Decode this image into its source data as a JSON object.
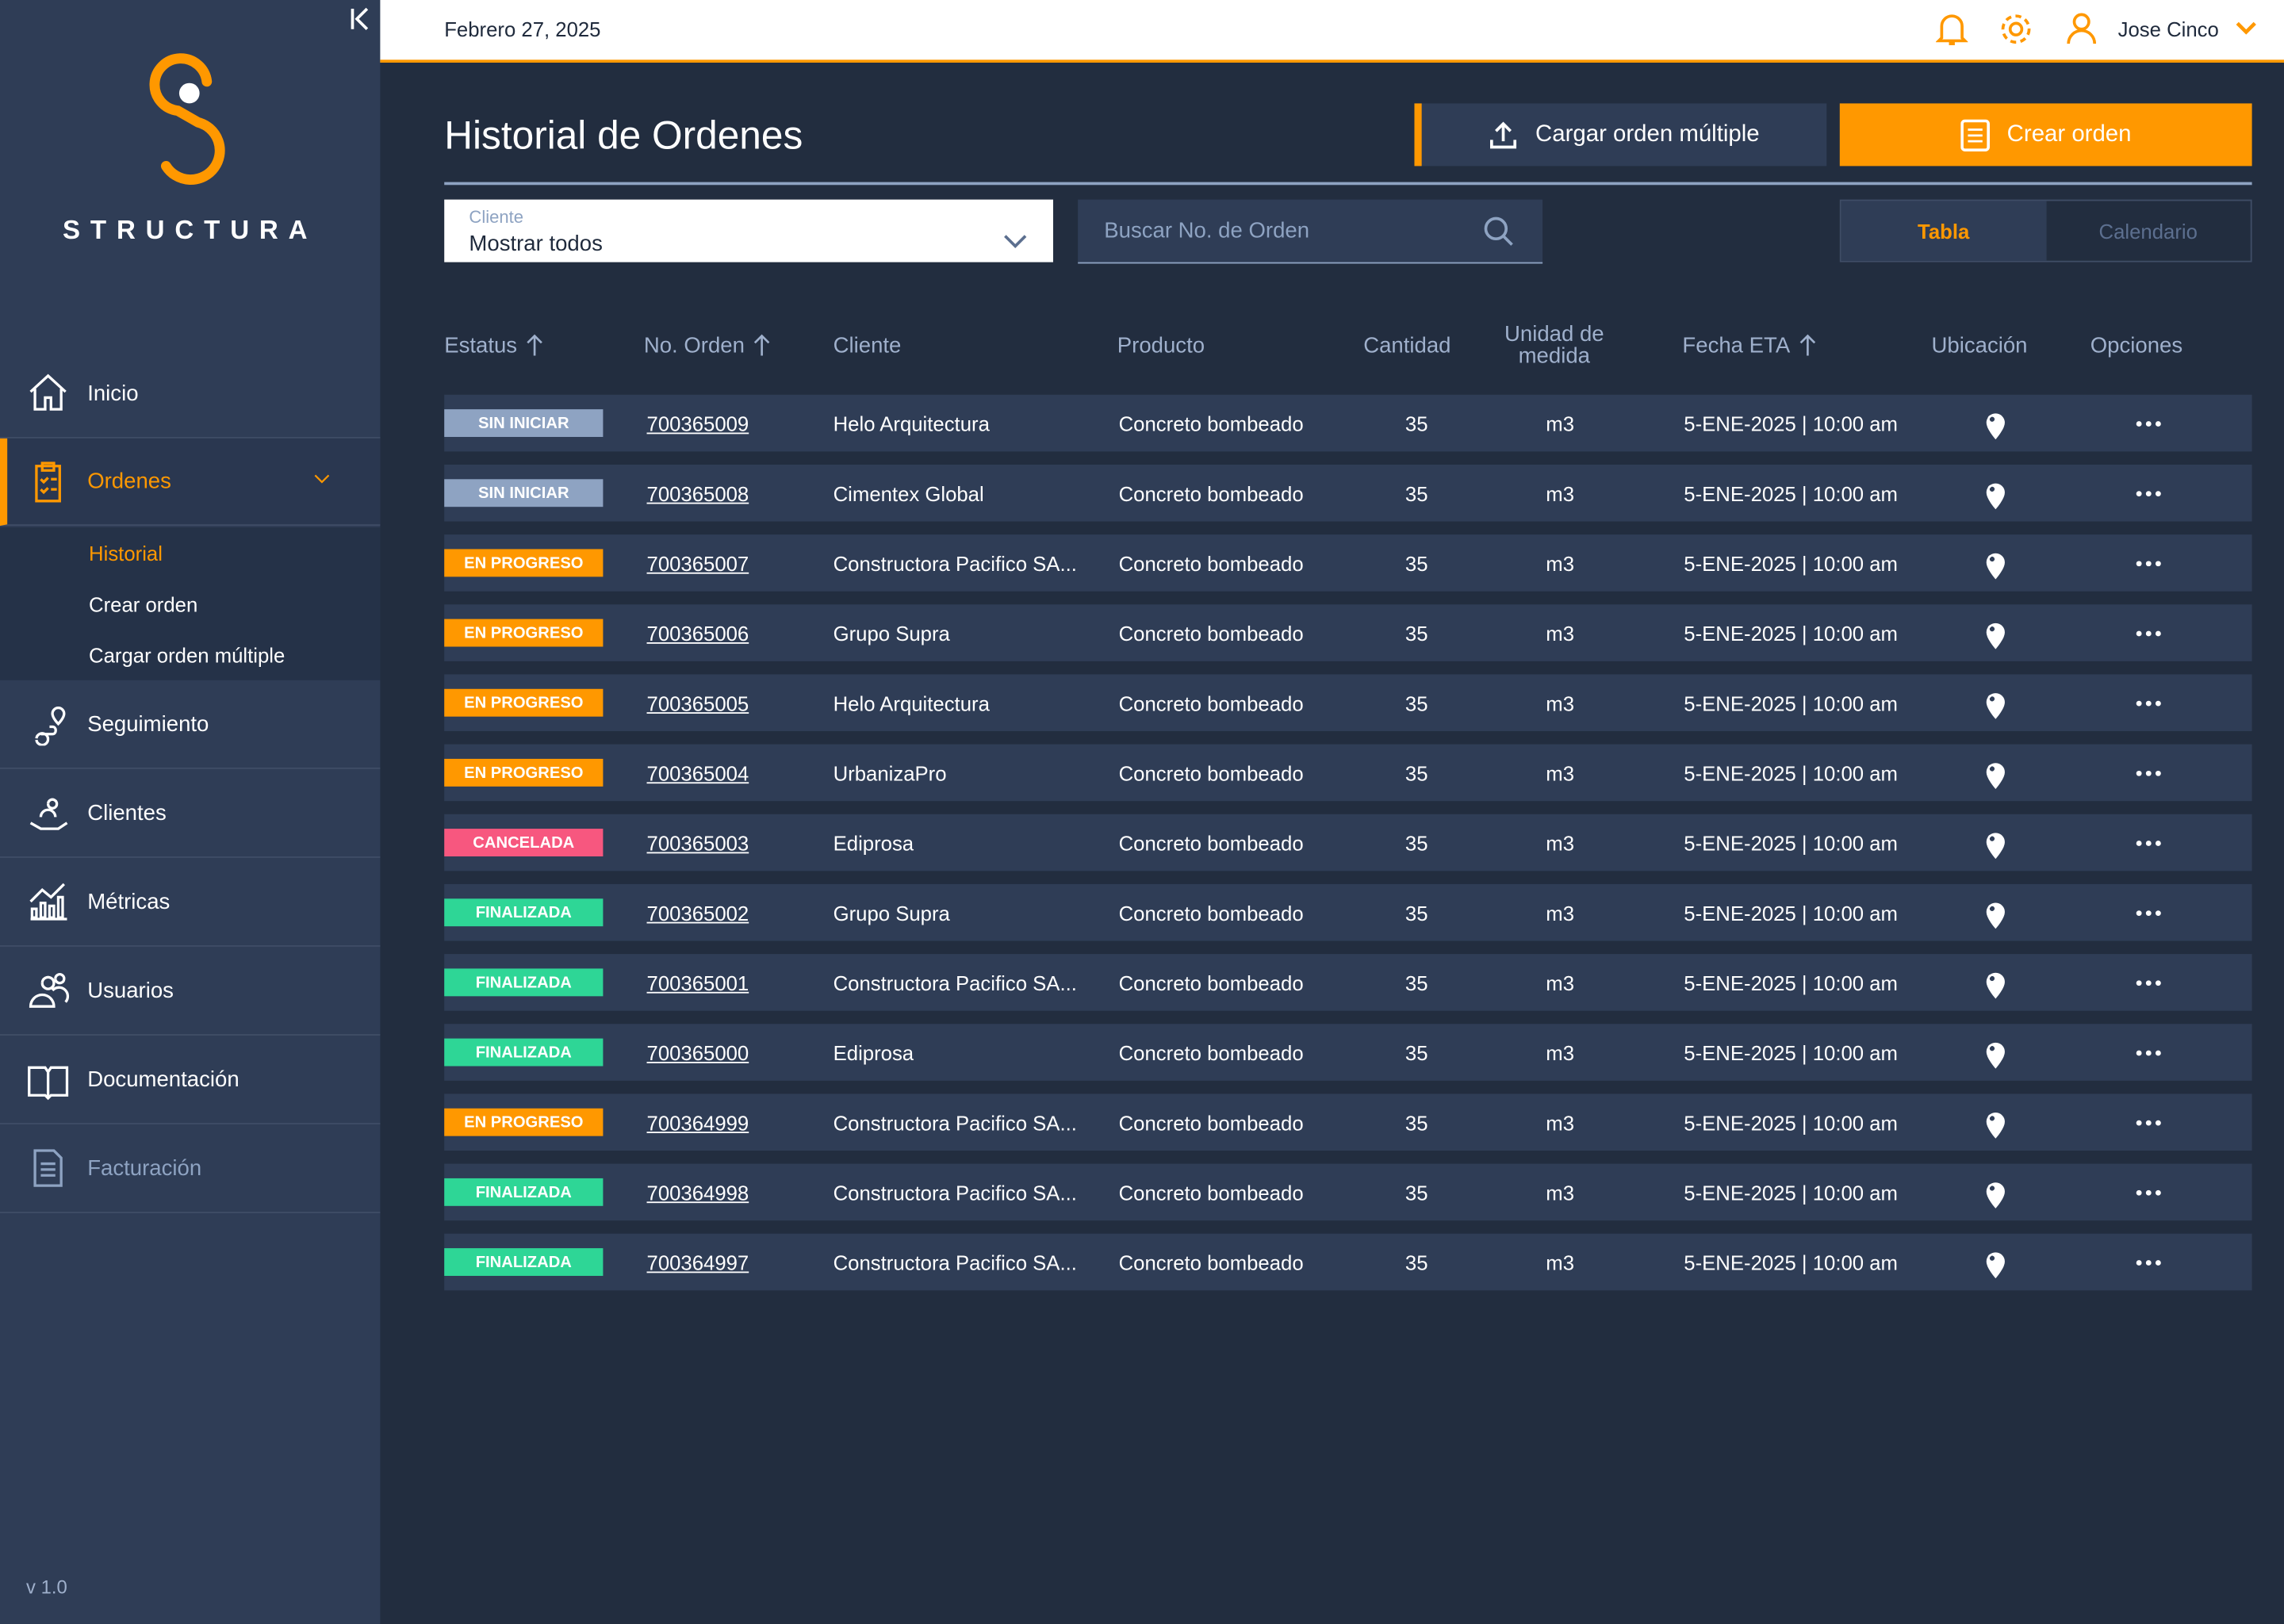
{
  "sidebar": {
    "brand": "STRUCTURA",
    "nav": [
      {
        "label": "Inicio"
      },
      {
        "label": "Ordenes",
        "children": [
          "Historial",
          "Crear orden",
          "Cargar orden múltiple"
        ]
      },
      {
        "label": "Seguimiento"
      },
      {
        "label": "Clientes"
      },
      {
        "label": "Métricas"
      },
      {
        "label": "Usuarios"
      },
      {
        "label": "Documentación"
      },
      {
        "label": "Facturación"
      }
    ],
    "version": "v 1.0"
  },
  "header": {
    "date": "Febrero 27, 2025",
    "user": "Jose Cinco"
  },
  "page": {
    "title": "Historial de Ordenes",
    "actions": [
      "Cargar orden múltiple",
      "Crear orden"
    ],
    "filter": {
      "label": "Cliente",
      "value": "Mostrar todos"
    },
    "search_placeholder": "Buscar No. de Orden",
    "views": [
      "Tabla",
      "Calendario"
    ]
  },
  "table": {
    "columns": [
      "Estatus",
      "No. Orden",
      "Cliente",
      "Producto",
      "Cantidad",
      "Unidad de medida",
      "Fecha ETA",
      "Ubicación",
      "Opciones"
    ],
    "rows": [
      {
        "status": "SIN INICIAR",
        "status_color": "#8ea3c2",
        "order": "700365009",
        "client": "Helo Arquitectura",
        "product": "Concreto bombeado",
        "quantity": 35,
        "unit": "m3",
        "eta": "5-ENE-2025 | 10:00 am"
      },
      {
        "status": "SIN INICIAR",
        "status_color": "#8ea3c2",
        "order": "700365008",
        "client": "Cimentex Global",
        "product": "Concreto bombeado",
        "quantity": 35,
        "unit": "m3",
        "eta": "5-ENE-2025 | 10:00 am"
      },
      {
        "status": "EN PROGRESO",
        "status_color": "#ff9800",
        "order": "700365007",
        "client": "Constructora Pacifico SA...",
        "product": "Concreto bombeado",
        "quantity": 35,
        "unit": "m3",
        "eta": "5-ENE-2025 | 10:00 am"
      },
      {
        "status": "EN PROGRESO",
        "status_color": "#ff9800",
        "order": "700365006",
        "client": "Grupo Supra",
        "product": "Concreto bombeado",
        "quantity": 35,
        "unit": "m3",
        "eta": "5-ENE-2025 | 10:00 am"
      },
      {
        "status": "EN PROGRESO",
        "status_color": "#ff9800",
        "order": "700365005",
        "client": "Helo Arquitectura",
        "product": "Concreto bombeado",
        "quantity": 35,
        "unit": "m3",
        "eta": "5-ENE-2025 | 10:00 am"
      },
      {
        "status": "EN PROGRESO",
        "status_color": "#ff9800",
        "order": "700365004",
        "client": "UrbanizaPro",
        "product": "Concreto bombeado",
        "quantity": 35,
        "unit": "m3",
        "eta": "5-ENE-2025 | 10:00 am"
      },
      {
        "status": "CANCELADA",
        "status_color": "#f7577f",
        "order": "700365003",
        "client": "Ediprosa",
        "product": "Concreto bombeado",
        "quantity": 35,
        "unit": "m3",
        "eta": "5-ENE-2025 | 10:00 am"
      },
      {
        "status": "FINALIZADA",
        "status_color": "#2ed696",
        "order": "700365002",
        "client": "Grupo Supra",
        "product": "Concreto bombeado",
        "quantity": 35,
        "unit": "m3",
        "eta": "5-ENE-2025 | 10:00 am"
      },
      {
        "status": "FINALIZADA",
        "status_color": "#2ed696",
        "order": "700365001",
        "client": "Constructora Pacifico SA...",
        "product": "Concreto bombeado",
        "quantity": 35,
        "unit": "m3",
        "eta": "5-ENE-2025 | 10:00 am"
      },
      {
        "status": "FINALIZADA",
        "status_color": "#2ed696",
        "order": "700365000",
        "client": "Ediprosa",
        "product": "Concreto bombeado",
        "quantity": 35,
        "unit": "m3",
        "eta": "5-ENE-2025 | 10:00 am"
      },
      {
        "status": "EN PROGRESO",
        "status_color": "#ff9800",
        "order": "700364999",
        "client": "Constructora Pacifico SA...",
        "product": "Concreto bombeado",
        "quantity": 35,
        "unit": "m3",
        "eta": "5-ENE-2025 | 10:00 am"
      },
      {
        "status": "FINALIZADA",
        "status_color": "#2ed696",
        "order": "700364998",
        "client": "Constructora Pacifico SA...",
        "product": "Concreto bombeado",
        "quantity": 35,
        "unit": "m3",
        "eta": "5-ENE-2025 | 10:00 am"
      },
      {
        "status": "FINALIZADA",
        "status_color": "#2ed696",
        "order": "700364997",
        "client": "Constructora Pacifico SA...",
        "product": "Concreto bombeado",
        "quantity": 35,
        "unit": "m3",
        "eta": "5-ENE-2025 | 10:00 am"
      }
    ]
  }
}
